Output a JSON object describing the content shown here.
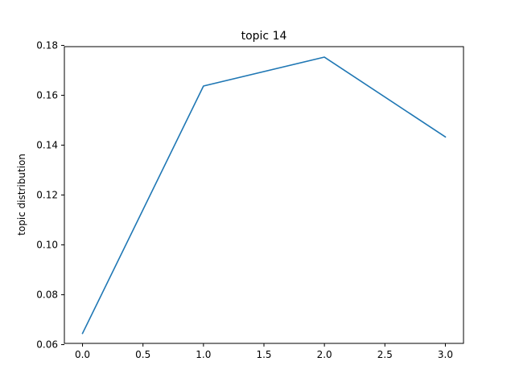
{
  "chart_data": {
    "type": "line",
    "title": "topic 14",
    "xlabel": "",
    "ylabel": "topic distribution",
    "x": [
      0,
      1,
      2,
      3
    ],
    "series": [
      {
        "values": [
          0.0645,
          0.1637,
          0.1753,
          0.1433
        ]
      }
    ],
    "xlim": [
      -0.15,
      3.15
    ],
    "ylim": [
      0.0605,
      0.1795
    ],
    "xticks": [
      0.0,
      0.5,
      1.0,
      1.5,
      2.0,
      2.5,
      3.0
    ],
    "xtick_labels": [
      "0.0",
      "0.5",
      "1.0",
      "1.5",
      "2.0",
      "2.5",
      "3.0"
    ],
    "yticks": [
      0.06,
      0.08,
      0.1,
      0.12,
      0.14,
      0.16,
      0.18
    ],
    "ytick_labels": [
      "0.06",
      "0.08",
      "0.10",
      "0.12",
      "0.14",
      "0.16",
      "0.18"
    ],
    "grid": false,
    "legend": "none",
    "line_color": "#1f77b4"
  }
}
